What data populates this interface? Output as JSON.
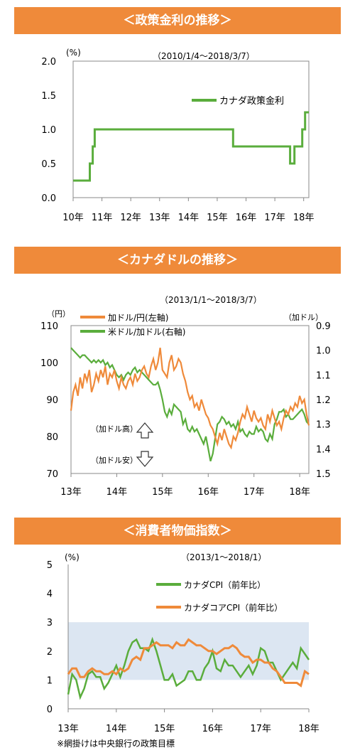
{
  "sections": [
    {
      "title": "＜政策金利の推移＞"
    },
    {
      "title": "＜カナダドルの推移＞"
    },
    {
      "title": "＜消費者物価指数＞"
    }
  ],
  "footnote": "※網掛けは中央銀行の政策目標",
  "chart_data": [
    {
      "type": "line",
      "title": "",
      "period": "（2010/1/4～2018/3/7）",
      "unit": "(%)",
      "x_ticks": [
        "10年",
        "11年",
        "12年",
        "13年",
        "14年",
        "15年",
        "16年",
        "17年",
        "18年"
      ],
      "xlim": [
        2010.0,
        2018.18
      ],
      "ylim": [
        0.0,
        2.0
      ],
      "y_ticks": [
        "0.0",
        "0.5",
        "1.0",
        "1.5",
        "2.0"
      ],
      "legend": "top-right",
      "series": [
        {
          "name": "カナダ政策金利",
          "color": "#5aad3c",
          "step": true,
          "x": [
            2010.0,
            2010.45,
            2010.58,
            2010.68,
            2010.75,
            2015.05,
            2015.55,
            2017.53,
            2017.68,
            2017.95,
            2018.05,
            2018.18
          ],
          "y": [
            0.25,
            0.25,
            0.5,
            0.75,
            1.0,
            1.0,
            0.75,
            0.5,
            0.75,
            1.0,
            1.25,
            1.25
          ]
        }
      ]
    },
    {
      "type": "line",
      "title": "",
      "period": "（2013/1/1～2018/3/7）",
      "left_unit": "（円）",
      "right_unit": "（加ドル）",
      "x_ticks": [
        "13年",
        "14年",
        "15年",
        "16年",
        "17年",
        "18年"
      ],
      "xlim": [
        2013.0,
        2018.2
      ],
      "ylim_left": [
        70,
        110
      ],
      "y_ticks_left": [
        "70",
        "80",
        "90",
        "100",
        "110"
      ],
      "ylim_right": [
        1.5,
        0.9
      ],
      "y_ticks_right": [
        "0.9",
        "1.0",
        "1.1",
        "1.2",
        "1.3",
        "1.4",
        "1.5"
      ],
      "legend": "top-left",
      "annotations": {
        "high": "（加ドル高）",
        "low": "（加ドル安）"
      },
      "series": [
        {
          "name": "加ドル/円(左軸)",
          "axis": "left",
          "color": "#ef8a3a",
          "x": [
            2013.0,
            2013.05,
            2013.1,
            2013.15,
            2013.2,
            2013.25,
            2013.3,
            2013.35,
            2013.4,
            2013.45,
            2013.5,
            2013.55,
            2013.6,
            2013.65,
            2013.7,
            2013.75,
            2013.8,
            2013.85,
            2013.9,
            2013.95,
            2014.0,
            2014.05,
            2014.1,
            2014.15,
            2014.2,
            2014.25,
            2014.3,
            2014.35,
            2014.4,
            2014.45,
            2014.5,
            2014.55,
            2014.6,
            2014.65,
            2014.7,
            2014.75,
            2014.8,
            2014.85,
            2014.9,
            2014.95,
            2015.0,
            2015.05,
            2015.1,
            2015.15,
            2015.2,
            2015.25,
            2015.3,
            2015.35,
            2015.4,
            2015.45,
            2015.5,
            2015.55,
            2015.6,
            2015.65,
            2015.7,
            2015.75,
            2015.8,
            2015.85,
            2015.9,
            2015.95,
            2016.0,
            2016.05,
            2016.1,
            2016.15,
            2016.2,
            2016.25,
            2016.3,
            2016.35,
            2016.4,
            2016.45,
            2016.5,
            2016.55,
            2016.6,
            2016.65,
            2016.7,
            2016.75,
            2016.8,
            2016.85,
            2016.9,
            2016.95,
            2017.0,
            2017.05,
            2017.1,
            2017.15,
            2017.2,
            2017.25,
            2017.3,
            2017.35,
            2017.4,
            2017.45,
            2017.5,
            2017.55,
            2017.6,
            2017.65,
            2017.7,
            2017.75,
            2017.8,
            2017.85,
            2017.9,
            2017.95,
            2018.0,
            2018.05,
            2018.1,
            2018.15,
            2018.2
          ],
          "y": [
            87,
            92,
            94,
            91,
            96,
            93,
            97,
            95,
            98,
            92,
            94,
            97,
            95,
            98,
            96,
            99,
            94,
            97,
            96,
            98,
            95,
            93,
            96,
            94,
            93,
            95,
            96,
            94,
            97,
            95,
            96,
            98,
            99,
            97,
            96,
            99,
            101,
            98,
            100,
            104,
            98,
            97,
            96,
            100,
            102,
            98,
            99,
            101,
            100,
            97,
            95,
            92,
            90,
            91,
            88,
            89,
            87,
            90,
            88,
            86,
            85,
            83,
            82,
            80,
            78,
            81,
            79,
            82,
            80,
            78,
            77,
            80,
            79,
            81,
            84,
            86,
            85,
            88,
            86,
            84,
            87,
            85,
            84,
            85,
            83,
            82,
            86,
            84,
            87,
            85,
            83,
            84,
            82,
            85,
            87,
            86,
            88,
            87,
            89,
            88,
            91,
            89,
            90,
            86,
            83
          ]
        },
        {
          "name": "米ドル/加ドル(右軸)",
          "axis": "right",
          "color": "#5aad3c",
          "x": [
            2013.0,
            2013.05,
            2013.1,
            2013.15,
            2013.2,
            2013.25,
            2013.3,
            2013.35,
            2013.4,
            2013.45,
            2013.5,
            2013.55,
            2013.6,
            2013.65,
            2013.7,
            2013.75,
            2013.8,
            2013.85,
            2013.9,
            2013.95,
            2014.0,
            2014.05,
            2014.1,
            2014.15,
            2014.2,
            2014.25,
            2014.3,
            2014.35,
            2014.4,
            2014.45,
            2014.5,
            2014.55,
            2014.6,
            2014.65,
            2014.7,
            2014.75,
            2014.8,
            2014.85,
            2014.9,
            2014.95,
            2015.0,
            2015.05,
            2015.1,
            2015.15,
            2015.2,
            2015.25,
            2015.3,
            2015.35,
            2015.4,
            2015.45,
            2015.5,
            2015.55,
            2015.6,
            2015.65,
            2015.7,
            2015.75,
            2015.8,
            2015.85,
            2015.9,
            2015.95,
            2016.0,
            2016.05,
            2016.1,
            2016.15,
            2016.2,
            2016.25,
            2016.3,
            2016.35,
            2016.4,
            2016.45,
            2016.5,
            2016.55,
            2016.6,
            2016.65,
            2016.7,
            2016.75,
            2016.8,
            2016.85,
            2016.9,
            2016.95,
            2017.0,
            2017.05,
            2017.1,
            2017.15,
            2017.2,
            2017.25,
            2017.3,
            2017.35,
            2017.4,
            2017.45,
            2017.5,
            2017.55,
            2017.6,
            2017.65,
            2017.7,
            2017.75,
            2017.8,
            2017.85,
            2017.9,
            2017.95,
            2018.0,
            2018.05,
            2018.1,
            2018.15,
            2018.2
          ],
          "y": [
            0.99,
            1.0,
            1.01,
            1.02,
            1.03,
            1.02,
            1.02,
            1.03,
            1.04,
            1.05,
            1.04,
            1.05,
            1.04,
            1.05,
            1.04,
            1.06,
            1.05,
            1.07,
            1.06,
            1.08,
            1.1,
            1.11,
            1.1,
            1.12,
            1.1,
            1.09,
            1.1,
            1.08,
            1.07,
            1.09,
            1.08,
            1.09,
            1.1,
            1.11,
            1.12,
            1.13,
            1.14,
            1.14,
            1.13,
            1.16,
            1.2,
            1.25,
            1.27,
            1.24,
            1.26,
            1.22,
            1.23,
            1.24,
            1.25,
            1.3,
            1.28,
            1.32,
            1.33,
            1.31,
            1.33,
            1.32,
            1.34,
            1.36,
            1.38,
            1.35,
            1.4,
            1.45,
            1.42,
            1.36,
            1.3,
            1.29,
            1.27,
            1.28,
            1.3,
            1.29,
            1.31,
            1.3,
            1.32,
            1.29,
            1.33,
            1.32,
            1.34,
            1.35,
            1.33,
            1.34,
            1.34,
            1.31,
            1.33,
            1.32,
            1.33,
            1.36,
            1.37,
            1.34,
            1.36,
            1.3,
            1.28,
            1.25,
            1.25,
            1.24,
            1.27,
            1.26,
            1.28,
            1.28,
            1.27,
            1.26,
            1.25,
            1.24,
            1.26,
            1.29,
            1.3
          ]
        }
      ]
    },
    {
      "type": "line",
      "title": "",
      "period": "（2013/1～2018/1）",
      "unit": "(%)",
      "x_ticks": [
        "13年",
        "14年",
        "15年",
        "16年",
        "17年",
        "18年"
      ],
      "xlim": [
        2013.0,
        2018.0
      ],
      "ylim": [
        0,
        5
      ],
      "y_ticks": [
        "0",
        "1",
        "2",
        "3",
        "4",
        "5"
      ],
      "target_band": [
        1,
        3
      ],
      "legend": "top-right",
      "series": [
        {
          "name": "カナダCPI（前年比）",
          "color": "#5aad3c",
          "x": [
            2013.0,
            2013.083,
            2013.167,
            2013.25,
            2013.333,
            2013.417,
            2013.5,
            2013.583,
            2013.667,
            2013.75,
            2013.833,
            2013.917,
            2014.0,
            2014.083,
            2014.167,
            2014.25,
            2014.333,
            2014.417,
            2014.5,
            2014.583,
            2014.667,
            2014.75,
            2014.833,
            2014.917,
            2015.0,
            2015.083,
            2015.167,
            2015.25,
            2015.333,
            2015.417,
            2015.5,
            2015.583,
            2015.667,
            2015.75,
            2015.833,
            2015.917,
            2016.0,
            2016.083,
            2016.167,
            2016.25,
            2016.333,
            2016.417,
            2016.5,
            2016.583,
            2016.667,
            2016.75,
            2016.833,
            2016.917,
            2017.0,
            2017.083,
            2017.167,
            2017.25,
            2017.333,
            2017.417,
            2017.5,
            2017.583,
            2017.667,
            2017.75,
            2017.833,
            2017.917,
            2018.0
          ],
          "y": [
            0.5,
            1.2,
            1.0,
            0.4,
            0.7,
            1.2,
            1.3,
            1.1,
            1.1,
            0.7,
            0.9,
            1.2,
            1.5,
            1.1,
            1.5,
            2.0,
            2.3,
            2.4,
            2.1,
            2.1,
            2.0,
            2.4,
            2.0,
            1.5,
            1.0,
            1.0,
            1.2,
            0.8,
            0.9,
            1.0,
            1.3,
            1.3,
            1.0,
            1.0,
            1.4,
            1.6,
            2.0,
            1.4,
            1.3,
            1.7,
            1.5,
            1.5,
            1.3,
            1.1,
            1.3,
            1.5,
            1.2,
            1.5,
            2.1,
            2.0,
            1.6,
            1.6,
            1.3,
            1.0,
            1.2,
            1.4,
            1.6,
            1.4,
            2.1,
            1.9,
            1.7
          ]
        },
        {
          "name": "カナダコアCPI（前年比）",
          "color": "#ef8a3a",
          "x": [
            2013.0,
            2013.083,
            2013.167,
            2013.25,
            2013.333,
            2013.417,
            2013.5,
            2013.583,
            2013.667,
            2013.75,
            2013.833,
            2013.917,
            2014.0,
            2014.083,
            2014.167,
            2014.25,
            2014.333,
            2014.417,
            2014.5,
            2014.583,
            2014.667,
            2014.75,
            2014.833,
            2014.917,
            2015.0,
            2015.083,
            2015.167,
            2015.25,
            2015.333,
            2015.417,
            2015.5,
            2015.583,
            2015.667,
            2015.75,
            2015.833,
            2015.917,
            2016.0,
            2016.083,
            2016.167,
            2016.25,
            2016.333,
            2016.417,
            2016.5,
            2016.583,
            2016.667,
            2016.75,
            2016.833,
            2016.917,
            2017.0,
            2017.083,
            2017.167,
            2017.25,
            2017.333,
            2017.417,
            2017.5,
            2017.583,
            2017.667,
            2017.75,
            2017.833,
            2017.917,
            2018.0
          ],
          "y": [
            1.2,
            1.4,
            1.4,
            1.1,
            1.1,
            1.3,
            1.4,
            1.3,
            1.3,
            1.2,
            1.2,
            1.3,
            1.2,
            1.4,
            1.3,
            1.4,
            1.7,
            1.8,
            1.7,
            2.1,
            2.1,
            2.2,
            2.3,
            2.2,
            2.2,
            2.2,
            2.1,
            2.3,
            2.2,
            2.2,
            2.4,
            2.3,
            2.2,
            2.2,
            2.1,
            2.0,
            2.0,
            1.9,
            2.0,
            2.1,
            2.1,
            2.2,
            2.1,
            1.9,
            1.8,
            1.8,
            1.6,
            1.7,
            1.7,
            1.6,
            1.6,
            1.4,
            1.3,
            1.1,
            0.9,
            0.9,
            0.9,
            0.9,
            0.8,
            1.3,
            1.2
          ]
        }
      ]
    }
  ]
}
